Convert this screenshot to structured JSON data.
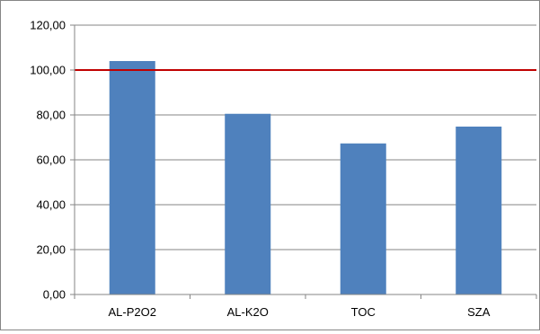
{
  "chart_data": {
    "type": "bar",
    "categories": [
      "AL-P2O2",
      "AL-K2O",
      "TOC",
      "SZA"
    ],
    "values": [
      104,
      80.5,
      67.3,
      74.8
    ],
    "y_ticks": [
      "0,00",
      "20,00",
      "40,00",
      "60,00",
      "80,00",
      "100,00",
      "120,00"
    ],
    "ylim": [
      0,
      120
    ],
    "reference_line": {
      "value": 100,
      "color": "#c00000"
    },
    "bar_color": "#4f81bd",
    "gridlines": true,
    "legend": false
  }
}
